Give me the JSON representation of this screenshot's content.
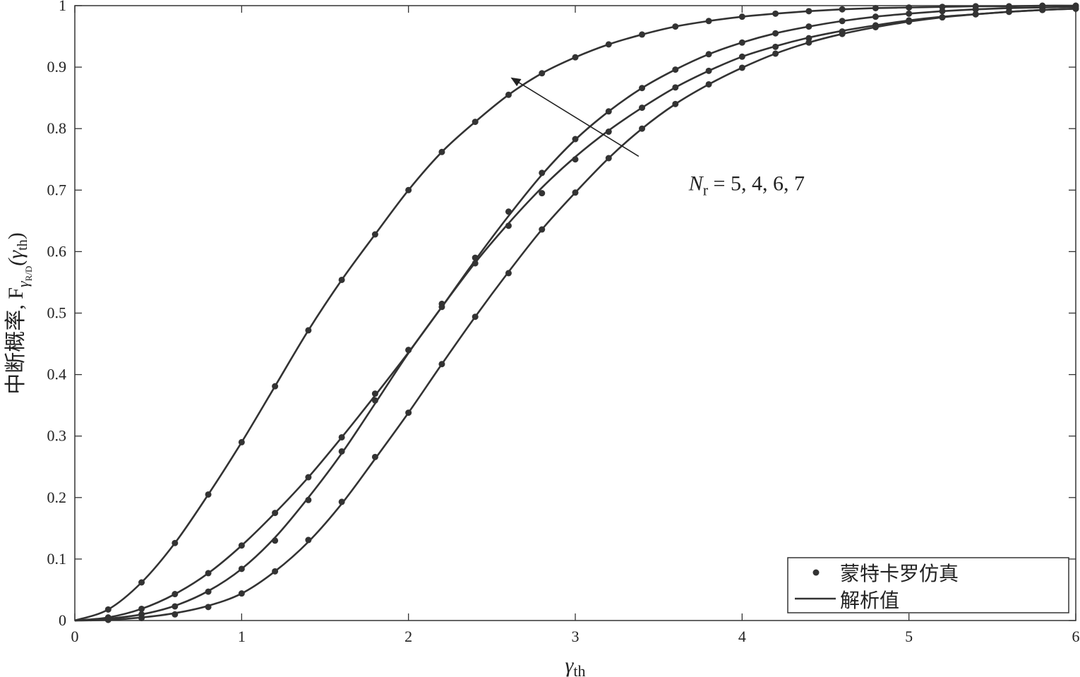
{
  "chart_data": {
    "type": "line",
    "xlabel_symbol": "γ",
    "xlabel_sub": "th",
    "ylabel_text": "中断概率, F",
    "ylabel_sub": "γ",
    "ylabel_subsub": "R/D",
    "ylabel_arg_open": "(γ",
    "ylabel_arg_sub": "th",
    "ylabel_arg_close": ")",
    "xlim": [
      0,
      6
    ],
    "ylim": [
      0,
      1
    ],
    "xticks": [
      "0",
      "1",
      "2",
      "3",
      "4",
      "5",
      "6"
    ],
    "yticks": [
      "0",
      "0.1",
      "0.2",
      "0.3",
      "0.4",
      "0.5",
      "0.6",
      "0.7",
      "0.8",
      "0.9",
      "1"
    ],
    "grid": false,
    "legend_position": "bottom-right",
    "legend": [
      {
        "label": "蒙特卡罗仿真",
        "marker": "dot"
      },
      {
        "label": "解析值",
        "marker": "line"
      }
    ],
    "annotation": {
      "var": "N",
      "sub": "r",
      "values_text": " = 5, 4, 6, 7",
      "arrow_from": [
        3.38,
        0.755
      ],
      "arrow_to": [
        2.62,
        0.882
      ],
      "label_pos": [
        3.68,
        0.7
      ]
    },
    "line_color": "#333333",
    "series": [
      {
        "x": [
          0,
          0.2,
          0.4,
          0.6,
          0.8,
          1.0,
          1.2,
          1.4,
          1.6,
          1.8,
          2.0,
          2.2,
          2.4,
          2.6,
          2.8,
          3.0,
          3.2,
          3.4,
          3.6,
          3.8,
          4.0,
          4.2,
          4.4,
          4.6,
          4.8,
          5.0,
          5.2,
          5.4,
          5.6,
          5.8,
          6.0
        ],
        "y": [
          0,
          0.018,
          0.062,
          0.126,
          0.205,
          0.29,
          0.381,
          0.472,
          0.554,
          0.628,
          0.7,
          0.762,
          0.811,
          0.855,
          0.89,
          0.916,
          0.937,
          0.953,
          0.966,
          0.975,
          0.982,
          0.987,
          0.991,
          0.994,
          0.996,
          0.997,
          0.998,
          0.999,
          0.999,
          1.0,
          1.0
        ],
        "sim": [
          [
            0.2,
            0.018
          ],
          [
            0.4,
            0.062
          ],
          [
            0.6,
            0.126
          ],
          [
            0.8,
            0.205
          ],
          [
            1.0,
            0.29
          ],
          [
            1.2,
            0.381
          ],
          [
            1.4,
            0.472
          ],
          [
            1.6,
            0.554
          ],
          [
            1.8,
            0.628
          ],
          [
            2.0,
            0.7
          ],
          [
            2.2,
            0.762
          ],
          [
            2.4,
            0.811
          ],
          [
            2.6,
            0.855
          ],
          [
            2.8,
            0.89
          ],
          [
            3.0,
            0.916
          ],
          [
            3.2,
            0.937
          ],
          [
            3.4,
            0.953
          ],
          [
            3.6,
            0.966
          ],
          [
            3.8,
            0.975
          ],
          [
            4.0,
            0.982
          ],
          [
            4.2,
            0.987
          ],
          [
            4.4,
            0.991
          ],
          [
            4.6,
            0.994
          ],
          [
            4.8,
            0.996
          ],
          [
            5.0,
            0.997
          ],
          [
            5.2,
            0.998
          ],
          [
            5.4,
            0.999
          ],
          [
            5.6,
            0.999
          ],
          [
            5.8,
            1.0
          ],
          [
            6.0,
            1.0
          ]
        ]
      },
      {
        "x": [
          0,
          0.2,
          0.4,
          0.6,
          0.8,
          1.0,
          1.2,
          1.4,
          1.6,
          1.8,
          2.0,
          2.2,
          2.4,
          2.6,
          2.8,
          3.0,
          3.2,
          3.4,
          3.6,
          3.8,
          4.0,
          4.2,
          4.4,
          4.6,
          4.8,
          5.0,
          5.2,
          5.4,
          5.6,
          5.8,
          6.0
        ],
        "y": [
          0,
          0.005,
          0.019,
          0.043,
          0.077,
          0.122,
          0.175,
          0.233,
          0.298,
          0.366,
          0.436,
          0.51,
          0.586,
          0.658,
          0.725,
          0.782,
          0.828,
          0.866,
          0.896,
          0.921,
          0.94,
          0.955,
          0.966,
          0.975,
          0.982,
          0.987,
          0.991,
          0.994,
          0.996,
          0.997,
          0.998
        ],
        "sim": [
          [
            0.2,
            0.005
          ],
          [
            0.4,
            0.019
          ],
          [
            0.6,
            0.043
          ],
          [
            0.8,
            0.077
          ],
          [
            1.0,
            0.122
          ],
          [
            1.2,
            0.175
          ],
          [
            1.4,
            0.233
          ],
          [
            1.6,
            0.298
          ],
          [
            1.8,
            0.369
          ],
          [
            2.0,
            0.44
          ],
          [
            2.2,
            0.515
          ],
          [
            2.4,
            0.59
          ],
          [
            2.6,
            0.665
          ],
          [
            2.8,
            0.728
          ],
          [
            3.0,
            0.783
          ],
          [
            3.2,
            0.828
          ],
          [
            3.4,
            0.866
          ],
          [
            3.6,
            0.896
          ],
          [
            3.8,
            0.921
          ],
          [
            4.0,
            0.94
          ],
          [
            4.2,
            0.955
          ],
          [
            4.4,
            0.966
          ],
          [
            4.6,
            0.975
          ],
          [
            4.8,
            0.982
          ],
          [
            5.0,
            0.987
          ],
          [
            5.2,
            0.991
          ],
          [
            5.4,
            0.994
          ],
          [
            5.6,
            0.996
          ],
          [
            5.8,
            0.997
          ],
          [
            6.0,
            0.998
          ]
        ]
      },
      {
        "x": [
          0,
          0.2,
          0.4,
          0.6,
          0.8,
          1.0,
          1.2,
          1.4,
          1.6,
          1.8,
          2.0,
          2.2,
          2.4,
          2.6,
          2.8,
          3.0,
          3.2,
          3.4,
          3.6,
          3.8,
          4.0,
          4.2,
          4.4,
          4.6,
          4.8,
          5.0,
          5.2,
          5.4,
          5.6,
          5.8,
          6.0
        ],
        "y": [
          0,
          0.003,
          0.01,
          0.024,
          0.048,
          0.084,
          0.135,
          0.2,
          0.272,
          0.353,
          0.435,
          0.51,
          0.582,
          0.646,
          0.704,
          0.754,
          0.797,
          0.834,
          0.867,
          0.894,
          0.917,
          0.934,
          0.948,
          0.959,
          0.968,
          0.976,
          0.982,
          0.986,
          0.99,
          0.993,
          0.995
        ],
        "sim": [
          [
            0.2,
            0.003
          ],
          [
            0.4,
            0.01
          ],
          [
            0.6,
            0.023
          ],
          [
            0.8,
            0.047
          ],
          [
            1.0,
            0.084
          ],
          [
            1.2,
            0.13
          ],
          [
            1.4,
            0.196
          ],
          [
            1.6,
            0.275
          ],
          [
            1.8,
            0.358
          ],
          [
            2.0,
            0.44
          ],
          [
            2.2,
            0.51
          ],
          [
            2.4,
            0.581
          ],
          [
            2.6,
            0.642
          ],
          [
            2.8,
            0.695
          ],
          [
            3.0,
            0.75
          ],
          [
            3.2,
            0.795
          ],
          [
            3.4,
            0.834
          ],
          [
            3.6,
            0.867
          ],
          [
            3.8,
            0.894
          ],
          [
            4.0,
            0.917
          ],
          [
            4.2,
            0.933
          ],
          [
            4.4,
            0.947
          ],
          [
            4.6,
            0.958
          ],
          [
            4.8,
            0.968
          ],
          [
            5.0,
            0.976
          ],
          [
            5.2,
            0.981
          ],
          [
            5.4,
            0.986
          ],
          [
            5.6,
            0.99
          ],
          [
            5.8,
            0.993
          ],
          [
            6.0,
            0.995
          ]
        ]
      },
      {
        "x": [
          0,
          0.2,
          0.4,
          0.6,
          0.8,
          1.0,
          1.2,
          1.4,
          1.6,
          1.8,
          2.0,
          2.2,
          2.4,
          2.6,
          2.8,
          3.0,
          3.2,
          3.4,
          3.6,
          3.8,
          4.0,
          4.2,
          4.4,
          4.6,
          4.8,
          5.0,
          5.2,
          5.4,
          5.6,
          5.8,
          6.0
        ],
        "y": [
          0,
          0.001,
          0.005,
          0.012,
          0.024,
          0.044,
          0.08,
          0.128,
          0.19,
          0.263,
          0.338,
          0.417,
          0.494,
          0.567,
          0.636,
          0.696,
          0.752,
          0.8,
          0.84,
          0.872,
          0.899,
          0.922,
          0.94,
          0.954,
          0.965,
          0.974,
          0.981,
          0.986,
          0.99,
          0.993,
          0.995
        ],
        "sim": [
          [
            0.2,
            0.001
          ],
          [
            0.4,
            0.004
          ],
          [
            0.6,
            0.01
          ],
          [
            0.8,
            0.022
          ],
          [
            1.0,
            0.044
          ],
          [
            1.2,
            0.08
          ],
          [
            1.4,
            0.131
          ],
          [
            1.6,
            0.193
          ],
          [
            1.8,
            0.266
          ],
          [
            2.0,
            0.338
          ],
          [
            2.2,
            0.417
          ],
          [
            2.4,
            0.494
          ],
          [
            2.6,
            0.565
          ],
          [
            2.8,
            0.636
          ],
          [
            3.0,
            0.696
          ],
          [
            3.2,
            0.752
          ],
          [
            3.4,
            0.8
          ],
          [
            3.6,
            0.84
          ],
          [
            3.8,
            0.872
          ],
          [
            4.0,
            0.899
          ],
          [
            4.2,
            0.922
          ],
          [
            4.4,
            0.94
          ],
          [
            4.6,
            0.954
          ],
          [
            4.8,
            0.965
          ],
          [
            5.0,
            0.974
          ],
          [
            5.2,
            0.981
          ],
          [
            5.4,
            0.986
          ],
          [
            5.6,
            0.99
          ],
          [
            5.8,
            0.993
          ],
          [
            6.0,
            0.995
          ]
        ]
      }
    ]
  }
}
